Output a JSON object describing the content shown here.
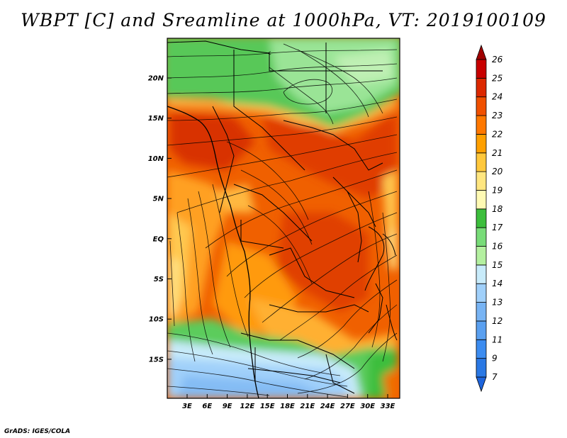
{
  "title": "WBPT [C] and Sreamline at 1000hPa, VT: 2019100109",
  "credit": "GrADS: IGES/COLA",
  "map": {
    "lat_labels": [
      "20N",
      "15N",
      "10N",
      "5N",
      "EQ",
      "5S",
      "10S",
      "15S"
    ],
    "lon_labels": [
      "3E",
      "6E",
      "9E",
      "12E",
      "15E",
      "18E",
      "21E",
      "24E",
      "27E",
      "30E",
      "33E"
    ]
  },
  "colorbar": {
    "labels": [
      "7",
      "9",
      "11",
      "12",
      "13",
      "14",
      "15",
      "16",
      "17",
      "18",
      "19",
      "20",
      "21",
      "22",
      "23",
      "24",
      "25",
      "26"
    ],
    "colors": [
      "#1e64dc",
      "#2a78e4",
      "#3c8cf0",
      "#5aa0f0",
      "#78b4f4",
      "#a0d0fa",
      "#c8ebfa",
      "#b4f0a0",
      "#78dc78",
      "#3cbe3c",
      "#fffab4",
      "#ffe680",
      "#ffc83c",
      "#ffa000",
      "#ff7800",
      "#f05000",
      "#dc2800",
      "#c80000",
      "#a00000"
    ]
  }
}
